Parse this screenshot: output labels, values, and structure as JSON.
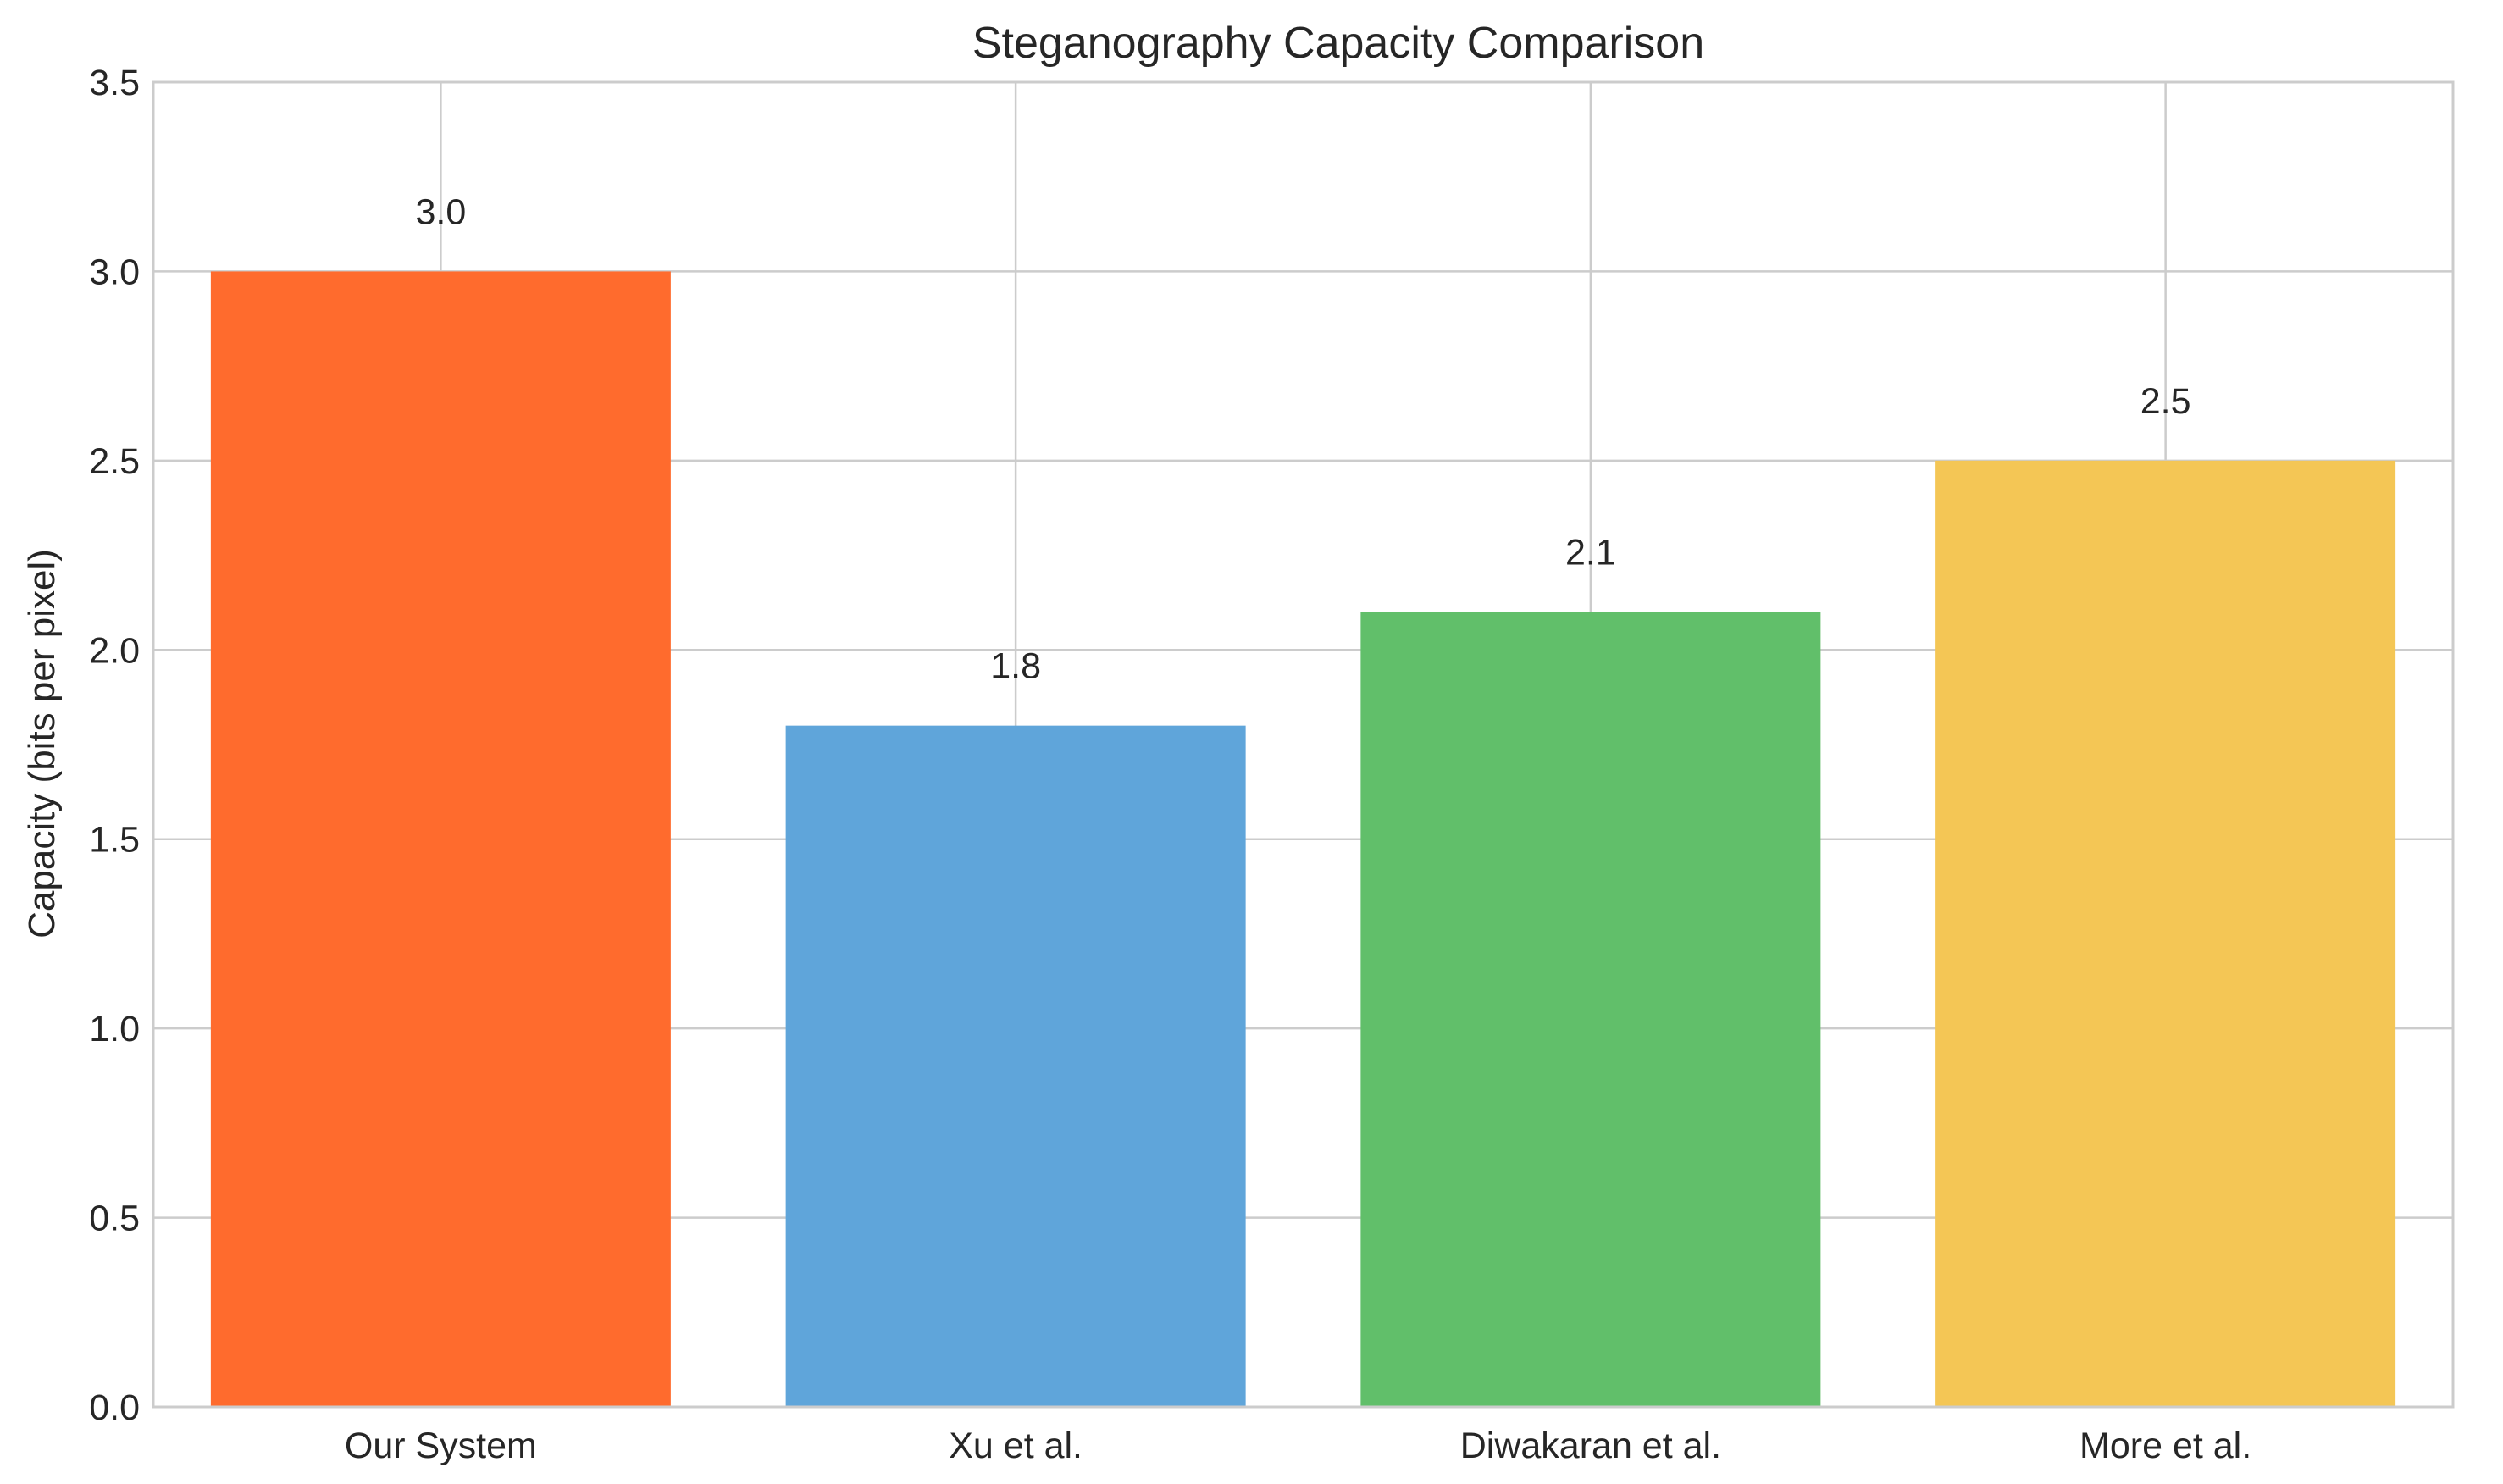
{
  "chart_data": {
    "type": "bar",
    "title": "Steganography Capacity Comparison",
    "xlabel": "",
    "ylabel": "Capacity (bits per pixel)",
    "ylim": [
      0,
      3.5
    ],
    "yticks": [
      "0.0",
      "0.5",
      "1.0",
      "1.5",
      "2.0",
      "2.5",
      "3.0",
      "3.5"
    ],
    "ytick_values": [
      0,
      0.5,
      1.0,
      1.5,
      2.0,
      2.5,
      3.0,
      3.5
    ],
    "categories": [
      "Our System",
      "Xu et al.",
      "Diwakaran et al.",
      "More et al."
    ],
    "values": [
      3.0,
      1.8,
      2.1,
      2.5
    ],
    "value_labels": [
      "3.0",
      "1.8",
      "2.1",
      "2.5"
    ],
    "colors": [
      "#ff6b2d",
      "#5fa5da",
      "#61bf6a",
      "#f4c655"
    ],
    "grid": true,
    "legend": "none"
  }
}
